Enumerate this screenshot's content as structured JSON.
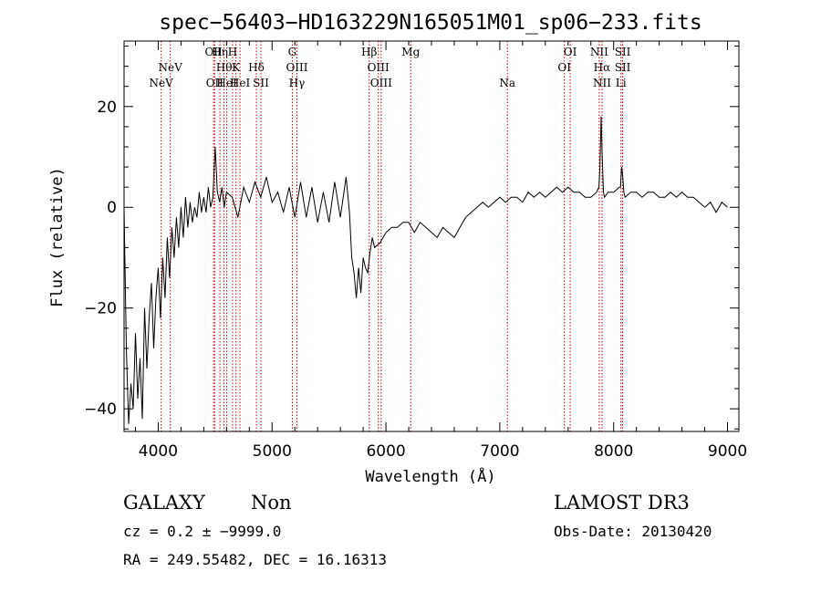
{
  "chart_data": {
    "type": "line",
    "title": "spec−56403−HD163229N165051M01_sp06−233.fits",
    "xlabel": "Wavelength (Å)",
    "ylabel": "Flux (relative)",
    "xlim": [
      3700,
      9100
    ],
    "ylim": [
      -44.5,
      33
    ],
    "x_ticks": [
      4000,
      5000,
      6000,
      7000,
      8000,
      9000
    ],
    "y_ticks": [
      -40,
      -20,
      0,
      20
    ],
    "x_tick_labels": [
      "4000",
      "5000",
      "6000",
      "7000",
      "8000",
      "9000"
    ],
    "y_tick_labels": [
      "−40",
      "−20",
      "0",
      "20"
    ],
    "grid": false,
    "spectrum_color": "#000000",
    "line_marker_color": "#cc0000",
    "series": [
      {
        "x": [
          3700,
          3720,
          3740,
          3760,
          3780,
          3800,
          3820,
          3840,
          3860,
          3880,
          3900,
          3920,
          3940,
          3960,
          3980,
          4000,
          4020,
          4040,
          4060,
          4080,
          4100,
          4120,
          4140,
          4160,
          4180,
          4200,
          4220,
          4240,
          4260,
          4280,
          4300,
          4320,
          4340,
          4360,
          4380,
          4400,
          4420,
          4440,
          4460,
          4480,
          4500,
          4520,
          4540,
          4560,
          4580,
          4600,
          4650,
          4700,
          4750,
          4800,
          4850,
          4900,
          4950,
          5000,
          5050,
          5100,
          5150,
          5200,
          5250,
          5300,
          5350,
          5400,
          5450,
          5500,
          5550,
          5600,
          5650,
          5680,
          5700,
          5720,
          5740,
          5760,
          5780,
          5800,
          5820,
          5840,
          5860,
          5880,
          5900,
          5950,
          6000,
          6050,
          6100,
          6150,
          6200,
          6250,
          6300,
          6350,
          6400,
          6450,
          6500,
          6550,
          6600,
          6650,
          6700,
          6750,
          6800,
          6850,
          6900,
          6950,
          7000,
          7050,
          7100,
          7150,
          7200,
          7250,
          7300,
          7350,
          7400,
          7450,
          7500,
          7550,
          7600,
          7650,
          7700,
          7750,
          7800,
          7850,
          7870,
          7880,
          7890,
          7900,
          7910,
          7920,
          7950,
          8000,
          8050,
          8060,
          8070,
          8080,
          8090,
          8100,
          8150,
          8200,
          8250,
          8300,
          8350,
          8400,
          8450,
          8500,
          8550,
          8600,
          8650,
          8700,
          8750,
          8800,
          8850,
          8900,
          8950,
          9000
        ],
        "values": [
          0,
          -28,
          -43,
          -35,
          -40,
          -25,
          -38,
          -30,
          -42,
          -20,
          -32,
          -22,
          -15,
          -28,
          -18,
          -12,
          -22,
          -10,
          -18,
          -6,
          -14,
          -4,
          -10,
          -2,
          -8,
          0,
          -6,
          2,
          -4,
          1,
          -3,
          0,
          -2,
          3,
          -1,
          2,
          -1,
          4,
          0,
          2,
          12,
          3,
          1,
          4,
          0,
          3,
          2,
          -2,
          4,
          1,
          5,
          2,
          6,
          1,
          3,
          -1,
          4,
          -2,
          5,
          -2,
          4,
          -3,
          3,
          -3,
          5,
          -2,
          6,
          -1,
          -10,
          -13,
          -18,
          -12,
          -17,
          -10,
          -12,
          -13,
          -9,
          -6,
          -8,
          -7,
          -5,
          -4,
          -4,
          -3,
          -3,
          -5,
          -3,
          -4,
          -5,
          -6,
          -4,
          -5,
          -6,
          -4,
          -2,
          -1,
          0,
          1,
          0,
          1,
          2,
          1,
          2,
          2,
          1,
          3,
          2,
          3,
          2,
          3,
          4,
          3,
          4,
          3,
          3,
          2,
          2,
          3,
          4,
          8,
          18,
          10,
          3,
          2,
          3,
          3,
          4,
          4,
          8,
          6,
          3,
          2,
          3,
          3,
          2,
          3,
          3,
          2,
          2,
          3,
          2,
          3,
          2,
          2,
          1,
          0,
          1,
          -1,
          1,
          0
        ]
      }
    ],
    "spectral_lines": [
      {
        "label": "NeV",
        "wavelength": 4026,
        "row": 3
      },
      {
        "label": "NeV",
        "wavelength": 4106,
        "row": 2
      },
      {
        "label": "OII",
        "wavelength": 4486,
        "row": 1
      },
      {
        "label": "OII",
        "wavelength": 4496,
        "row": 3
      },
      {
        "label": "Hη",
        "wavelength": 4542,
        "row": 1
      },
      {
        "label": "Hθ",
        "wavelength": 4578,
        "row": 2
      },
      {
        "label": "HeI",
        "wavelength": 4602,
        "row": 3
      },
      {
        "label": "H",
        "wavelength": 4653,
        "row": 1
      },
      {
        "label": "K",
        "wavelength": 4683,
        "row": 2
      },
      {
        "label": "HeI",
        "wavelength": 4718,
        "row": 3
      },
      {
        "label": "Hδ",
        "wavelength": 4862,
        "row": 2
      },
      {
        "label": "SII",
        "wavelength": 4902,
        "row": 3
      },
      {
        "label": "G",
        "wavelength": 5178,
        "row": 1
      },
      {
        "label": "OIII",
        "wavelength": 5218,
        "row": 2
      },
      {
        "label": "Hγ",
        "wavelength": 5218,
        "row": 3
      },
      {
        "label": "Hβ",
        "wavelength": 5853,
        "row": 1
      },
      {
        "label": "OIII",
        "wavelength": 5933,
        "row": 2
      },
      {
        "label": "OIII",
        "wavelength": 5958,
        "row": 3
      },
      {
        "label": "Mg",
        "wavelength": 6218,
        "row": 1
      },
      {
        "label": "Na",
        "wavelength": 7067,
        "row": 3
      },
      {
        "label": "OI",
        "wavelength": 7567,
        "row": 2
      },
      {
        "label": "OI",
        "wavelength": 7618,
        "row": 1
      },
      {
        "label": "NII",
        "wavelength": 7873,
        "row": 1
      },
      {
        "label": "Hα",
        "wavelength": 7898,
        "row": 2
      },
      {
        "label": "NII",
        "wavelength": 7898,
        "row": 3
      },
      {
        "label": "SII",
        "wavelength": 8079,
        "row": 1
      },
      {
        "label": "SII",
        "wavelength": 8079,
        "row": 2
      },
      {
        "label": "Li",
        "wavelength": 8064,
        "row": 3
      }
    ]
  },
  "info": {
    "object_class": "GALAXY",
    "subclass": "Non",
    "redshift": "cz = 0.2 ± −9999.0",
    "coords": "RA = 249.55482, DEC =  16.16313",
    "survey": "LAMOST DR3",
    "obs_date": "Obs-Date: 20130420"
  }
}
